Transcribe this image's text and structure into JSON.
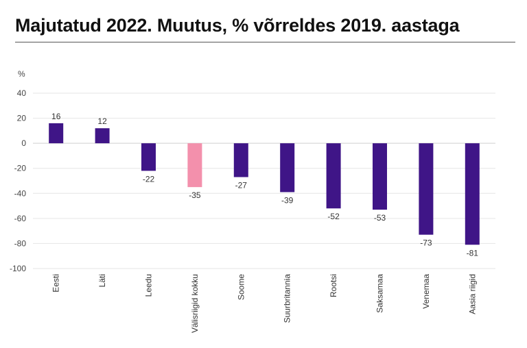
{
  "header": {
    "title": "Majutatud 2022. Muutus, % võrreldes 2019. aastaga"
  },
  "chart_data": {
    "type": "bar",
    "title": "Majutatud 2022. Muutus, % võrreldes 2019. aastaga",
    "ylabel": "%",
    "xlabel": "",
    "ylim": [
      -100,
      40
    ],
    "yticks": [
      40,
      20,
      0,
      -20,
      -40,
      -60,
      -80,
      -100
    ],
    "grid": true,
    "categories": [
      "Eesti",
      "Läti",
      "Leedu",
      "Välisriigid kokku",
      "Soome",
      "Suurbritannia",
      "Rootsi",
      "Saksamaa",
      "Venemaa",
      "Aasia riigid"
    ],
    "values": [
      16,
      12,
      -22,
      -35,
      -27,
      -39,
      -52,
      -53,
      -73,
      -81
    ],
    "colors": [
      "#3f1587",
      "#3f1587",
      "#3f1587",
      "#f390ac",
      "#3f1587",
      "#3f1587",
      "#3f1587",
      "#3f1587",
      "#3f1587",
      "#3f1587"
    ]
  }
}
